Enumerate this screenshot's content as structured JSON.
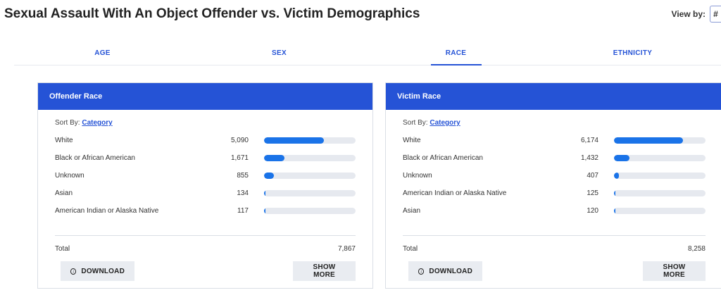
{
  "header": {
    "title": "Sexual Assault With An Object Offender vs. Victim Demographics",
    "view_by_label": "View by:",
    "view_by_value": "#"
  },
  "tabs": [
    {
      "label": "AGE",
      "active": false
    },
    {
      "label": "SEX",
      "active": false
    },
    {
      "label": "RACE",
      "active": true
    },
    {
      "label": "ETHNICITY",
      "active": false
    }
  ],
  "colors": {
    "accent": "#2553d6",
    "bar": "#1a73e8",
    "track": "#e6e9ef"
  },
  "offender": {
    "title": "Offender Race",
    "sort_label": "Sort By:",
    "sort_value": "Category",
    "rows": [
      {
        "label": "White",
        "value": "5,090",
        "fraction": 0.65
      },
      {
        "label": "Black or African American",
        "value": "1,671",
        "fraction": 0.22
      },
      {
        "label": "Unknown",
        "value": "855",
        "fraction": 0.11
      },
      {
        "label": "Asian",
        "value": "134",
        "fraction": 0.017
      },
      {
        "label": "American Indian or Alaska Native",
        "value": "117",
        "fraction": 0.015
      }
    ],
    "total_label": "Total",
    "total_value": "7,867",
    "download_label": "DOWNLOAD",
    "more_label": "SHOW MORE"
  },
  "victim": {
    "title": "Victim Race",
    "sort_label": "Sort By:",
    "sort_value": "Category",
    "rows": [
      {
        "label": "White",
        "value": "6,174",
        "fraction": 0.75
      },
      {
        "label": "Black or African American",
        "value": "1,432",
        "fraction": 0.17
      },
      {
        "label": "Unknown",
        "value": "407",
        "fraction": 0.05
      },
      {
        "label": "American Indian or Alaska Native",
        "value": "125",
        "fraction": 0.015
      },
      {
        "label": "Asian",
        "value": "120",
        "fraction": 0.015
      }
    ],
    "total_label": "Total",
    "total_value": "8,258",
    "download_label": "DOWNLOAD",
    "more_label": "SHOW MORE"
  }
}
